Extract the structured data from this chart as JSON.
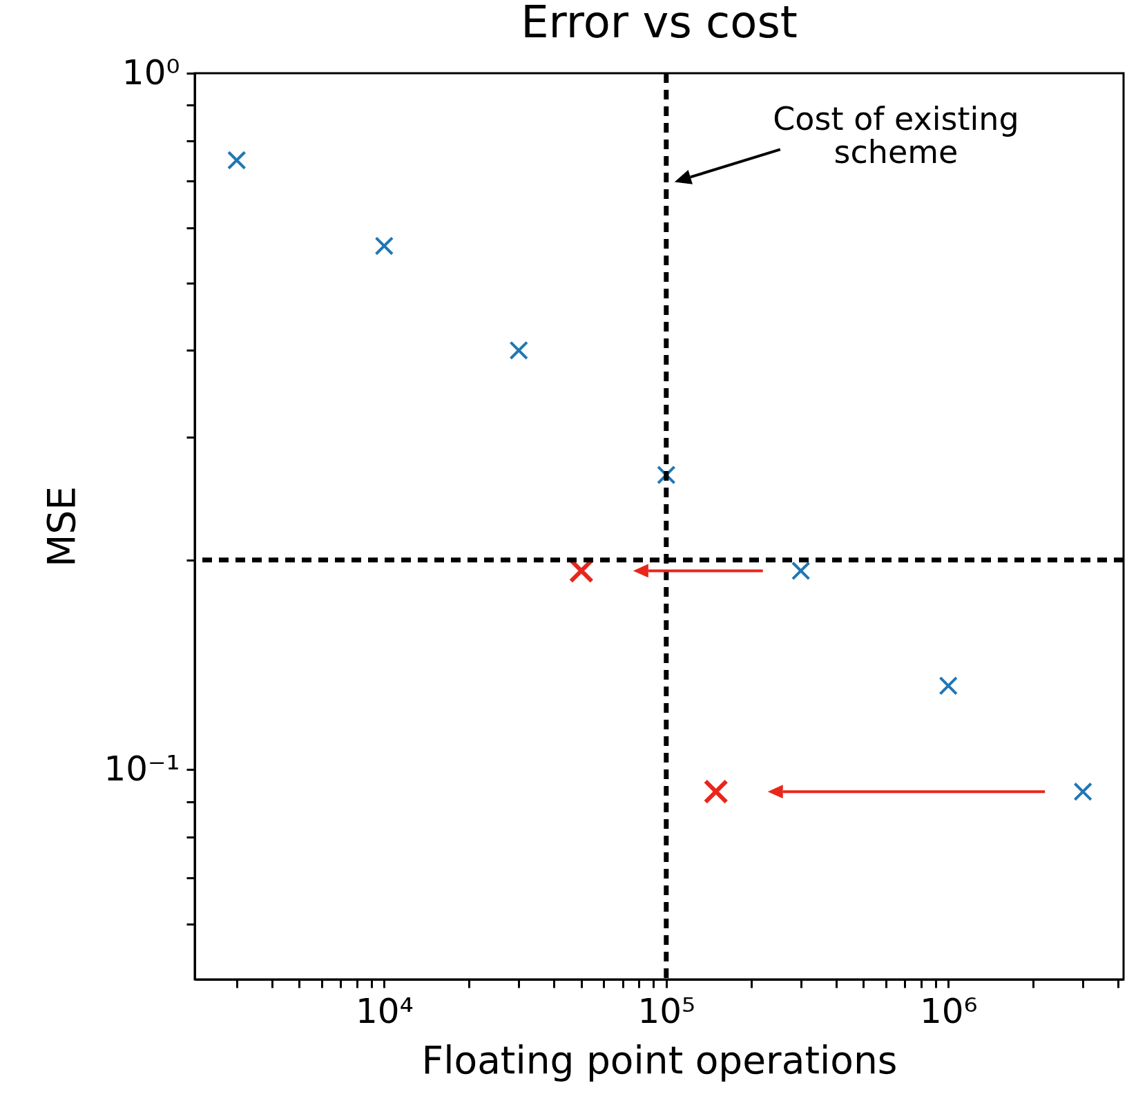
{
  "chart_data": {
    "type": "scatter",
    "title": "Error vs cost",
    "xlabel": "Floating point operations",
    "ylabel": "MSE",
    "log": "xy",
    "marker": "cross",
    "grid": false,
    "xlim": [
      2130,
      4180000
    ],
    "ylim": [
      0.05,
      1
    ],
    "xticks": [
      {
        "value": 3000,
        "label": null
      },
      {
        "value": 4000,
        "label": null
      },
      {
        "value": 5000,
        "label": null
      },
      {
        "value": 6000,
        "label": null
      },
      {
        "value": 7000,
        "label": null
      },
      {
        "value": 8000,
        "label": null
      },
      {
        "value": 9000,
        "label": null
      },
      {
        "value": 10000,
        "label": "10⁴"
      },
      {
        "value": 20000,
        "label": null
      },
      {
        "value": 30000,
        "label": null
      },
      {
        "value": 40000,
        "label": null
      },
      {
        "value": 50000,
        "label": null
      },
      {
        "value": 60000,
        "label": null
      },
      {
        "value": 70000,
        "label": null
      },
      {
        "value": 80000,
        "label": null
      },
      {
        "value": 90000,
        "label": null
      },
      {
        "value": 100000,
        "label": "10⁵"
      },
      {
        "value": 200000,
        "label": null
      },
      {
        "value": 300000,
        "label": null
      },
      {
        "value": 400000,
        "label": null
      },
      {
        "value": 500000,
        "label": null
      },
      {
        "value": 600000,
        "label": null
      },
      {
        "value": 700000,
        "label": null
      },
      {
        "value": 800000,
        "label": null
      },
      {
        "value": 900000,
        "label": null
      },
      {
        "value": 1000000,
        "label": "10⁶"
      },
      {
        "value": 2000000,
        "label": null
      },
      {
        "value": 3000000,
        "label": null
      },
      {
        "value": 4000000,
        "label": null
      }
    ],
    "yticks": [
      {
        "value": 0.06,
        "label": null
      },
      {
        "value": 0.07,
        "label": null
      },
      {
        "value": 0.08,
        "label": null
      },
      {
        "value": 0.09,
        "label": null
      },
      {
        "value": 0.1,
        "label": "10⁻¹"
      },
      {
        "value": 0.2,
        "label": null
      },
      {
        "value": 0.3,
        "label": null
      },
      {
        "value": 0.4,
        "label": null
      },
      {
        "value": 0.5,
        "label": null
      },
      {
        "value": 0.6,
        "label": null
      },
      {
        "value": 0.7,
        "label": null
      },
      {
        "value": 0.8,
        "label": null
      },
      {
        "value": 0.9,
        "label": null
      },
      {
        "value": 1,
        "label": "10⁰"
      }
    ],
    "series": [
      {
        "color": "#1f77b4",
        "x": [
          3000,
          10000,
          30000,
          100000,
          300000,
          1000000,
          3000000
        ],
        "values": [
          0.75,
          0.565,
          0.4,
          0.265,
          0.193,
          0.132,
          0.093
        ]
      },
      {
        "color": "#e8261b",
        "x": [
          50000,
          150000
        ],
        "values": [
          0.193,
          0.093
        ]
      }
    ],
    "ref_lines": [
      {
        "axis": "x",
        "value": 100000,
        "color": "#000000",
        "line_style": "dashed"
      },
      {
        "axis": "y",
        "value": 0.2,
        "color": "#000000",
        "line_style": "dashed"
      }
    ],
    "annotations": [
      "Cost of existing\nscheme"
    ]
  }
}
